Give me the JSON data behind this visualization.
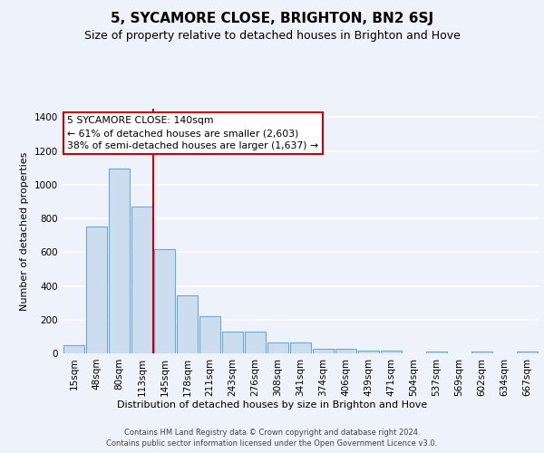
{
  "title": "5, SYCAMORE CLOSE, BRIGHTON, BN2 6SJ",
  "subtitle": "Size of property relative to detached houses in Brighton and Hove",
  "xlabel": "Distribution of detached houses by size in Brighton and Hove",
  "ylabel": "Number of detached properties",
  "footer_line1": "Contains HM Land Registry data © Crown copyright and database right 2024.",
  "footer_line2": "Contains public sector information licensed under the Open Government Licence v3.0.",
  "bar_labels": [
    "15sqm",
    "48sqm",
    "80sqm",
    "113sqm",
    "145sqm",
    "178sqm",
    "211sqm",
    "243sqm",
    "276sqm",
    "308sqm",
    "341sqm",
    "374sqm",
    "406sqm",
    "439sqm",
    "471sqm",
    "504sqm",
    "537sqm",
    "569sqm",
    "602sqm",
    "634sqm",
    "667sqm"
  ],
  "bar_values": [
    47,
    752,
    1097,
    868,
    617,
    345,
    222,
    130,
    130,
    65,
    65,
    27,
    27,
    18,
    15,
    0,
    10,
    0,
    10,
    0,
    10
  ],
  "bar_color": "#ccddf0",
  "bar_edge_color": "#6aaad4",
  "annotation_label": "5 SYCAMORE CLOSE: 140sqm",
  "annotation_line1": "← 61% of detached houses are smaller (2,603)",
  "annotation_line2": "38% of semi-detached houses are larger (1,637) →",
  "vline_color": "#cc0000",
  "vline_index": 3.5,
  "ylim": [
    0,
    1450
  ],
  "yticks": [
    0,
    200,
    400,
    600,
    800,
    1000,
    1200,
    1400
  ],
  "background_color": "#eef2fa",
  "grid_color": "#ffffff",
  "title_fontsize": 11,
  "subtitle_fontsize": 9,
  "ylabel_fontsize": 8,
  "tick_fontsize": 7.5,
  "xlabel_fontsize": 8,
  "footer_fontsize": 6,
  "ann_fontsize": 7.8
}
